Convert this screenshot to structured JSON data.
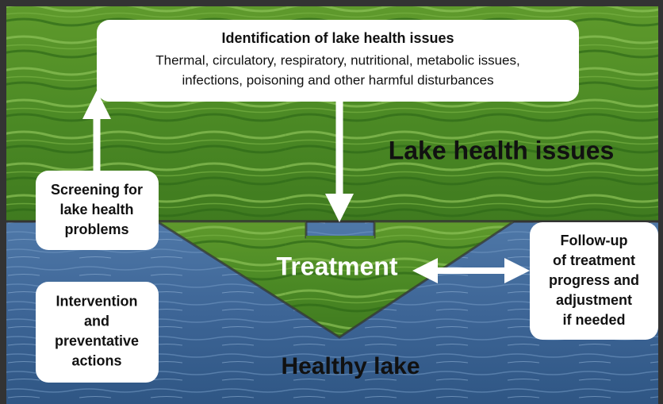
{
  "identification": {
    "title": "Identification of lake health issues",
    "lines": [
      "Thermal, circulatory, respiratory, nutritional, metabolic issues,",
      "infections, poisoning and other harmful disturbances"
    ]
  },
  "issues_label": "Lake health issues",
  "screening": [
    "Screening for",
    "lake health",
    "problems"
  ],
  "intervention": [
    "Intervention",
    "and",
    "preventative",
    "actions"
  ],
  "treatment": "Treatment",
  "follow_up": [
    "Follow-up",
    "of treatment",
    "progress and",
    "adjustment",
    "if needed"
  ],
  "healthy_lake": "Healthy lake"
}
